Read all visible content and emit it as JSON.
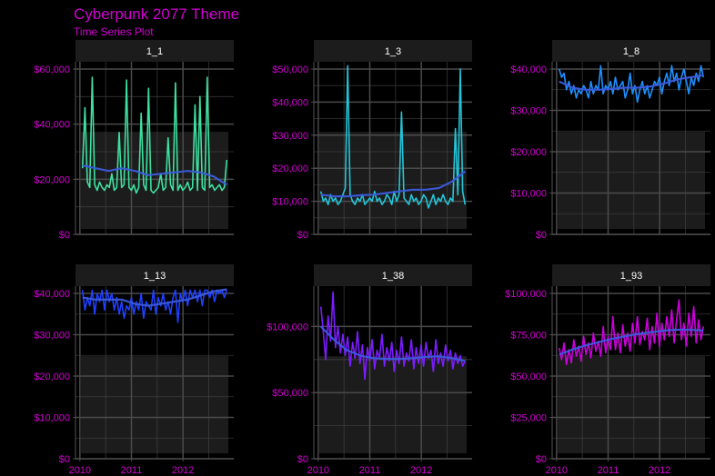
{
  "chart_data": {
    "type": "line",
    "title": "Cyberpunk 2077 Theme",
    "subtitle": "Time Series Plot",
    "x_tick_labels": [
      "2010",
      "2011",
      "2012"
    ],
    "colors": {
      "background": "#000000",
      "panel": "#1c1c1c",
      "strip": "#1c1c1c",
      "grid": "#4a4a4a",
      "axis_text": "#d100d1",
      "strip_text": "#ffffff",
      "title": "#d100d1",
      "smooth": "#3b5bdb"
    },
    "panels": [
      {
        "id": "1_1",
        "color": "#3ee0a0",
        "yticks": [
          0,
          20000,
          40000,
          60000
        ],
        "ytick_labels": [
          "$0",
          "$20,000",
          "$40,000",
          "$60,000"
        ],
        "ylim": [
          0,
          60000
        ],
        "values": [
          24000,
          46000,
          19000,
          17000,
          57000,
          18000,
          16000,
          19000,
          17000,
          16000,
          18000,
          17000,
          22000,
          16000,
          17000,
          37000,
          17000,
          18000,
          56000,
          17000,
          16000,
          18000,
          15000,
          17000,
          44000,
          18000,
          16000,
          53000,
          16000,
          15000,
          16000,
          17000,
          22000,
          16000,
          17000,
          35000,
          18000,
          16000,
          55000,
          16000,
          18000,
          16000,
          17000,
          19000,
          16000,
          17000,
          47000,
          16000,
          50000,
          17000,
          16000,
          57000,
          17000,
          18000,
          16000,
          17000,
          18000,
          16000,
          17000,
          27000
        ],
        "smooth": [
          25000,
          24000,
          23000,
          24000,
          23000,
          21500,
          22000,
          22500,
          23000,
          22500,
          21000,
          18000
        ]
      },
      {
        "id": "1_3",
        "color": "#22c5d8",
        "yticks": [
          0,
          10000,
          20000,
          30000,
          40000,
          50000
        ],
        "ytick_labels": [
          "$0",
          "$10,000",
          "$20,000",
          "$30,000",
          "$40,000",
          "$50,000"
        ],
        "ylim": [
          0,
          50000
        ],
        "values": [
          13000,
          10000,
          11000,
          9000,
          12000,
          10000,
          11000,
          9000,
          10000,
          12000,
          14000,
          51000,
          12000,
          10000,
          9000,
          11000,
          10000,
          12000,
          9000,
          10000,
          11000,
          10000,
          13000,
          10000,
          11000,
          9000,
          10000,
          12000,
          11000,
          9000,
          13000,
          10000,
          12000,
          37000,
          11000,
          10000,
          9000,
          12000,
          10000,
          11000,
          9000,
          10000,
          12000,
          11000,
          8000,
          10000,
          12000,
          9000,
          11000,
          10000,
          12000,
          10000,
          9000,
          11000,
          10000,
          32000,
          12000,
          50000,
          13000,
          9000
        ],
        "smooth": [
          12000,
          11500,
          11500,
          11800,
          12000,
          12500,
          13000,
          13500,
          13500,
          14000,
          16000,
          19000
        ]
      },
      {
        "id": "1_8",
        "color": "#1e90ff",
        "yticks": [
          0,
          10000,
          20000,
          30000,
          40000
        ],
        "ytick_labels": [
          "$0",
          "$10,000",
          "$20,000",
          "$30,000",
          "$40,000"
        ],
        "ylim": [
          0,
          40000
        ],
        "values": [
          40000,
          38000,
          39000,
          35000,
          37000,
          34000,
          36000,
          33000,
          35000,
          34000,
          36000,
          35000,
          33000,
          37000,
          34000,
          36000,
          35000,
          42000,
          34000,
          36000,
          35000,
          37000,
          34000,
          38000,
          35000,
          36000,
          37000,
          33000,
          35000,
          39000,
          34000,
          36000,
          32000,
          35000,
          37000,
          34000,
          36000,
          33000,
          35000,
          37000,
          36000,
          38000,
          34000,
          37000,
          39000,
          36000,
          41000,
          37000,
          39000,
          35000,
          38000,
          40000,
          37000,
          34000,
          38000,
          36000,
          39000,
          37000,
          42000,
          38000
        ],
        "smooth": [
          37000,
          35500,
          35000,
          35000,
          35200,
          35500,
          35500,
          35800,
          36500,
          37500,
          38000,
          38500
        ]
      },
      {
        "id": "1_13",
        "color": "#1f3fff",
        "yticks": [
          0,
          10000,
          20000,
          30000,
          40000
        ],
        "ytick_labels": [
          "$0",
          "$10,000",
          "$20,000",
          "$30,000",
          "$40,000"
        ],
        "ylim": [
          0,
          40000
        ],
        "values": [
          42000,
          36000,
          39000,
          37000,
          41000,
          35000,
          40000,
          38000,
          42000,
          36000,
          44000,
          38000,
          40000,
          36000,
          39000,
          35000,
          38000,
          34000,
          37000,
          36000,
          39000,
          35000,
          38000,
          36000,
          40000,
          34000,
          38000,
          37000,
          36000,
          41000,
          35000,
          39000,
          37000,
          40000,
          36000,
          38000,
          35000,
          39000,
          41000,
          33000,
          40000,
          38000,
          43000,
          37000,
          41000,
          39000,
          44000,
          38000,
          42000,
          37000,
          41000,
          43000,
          39000,
          42000,
          38000,
          44000,
          40000,
          43000,
          39000,
          42000
        ],
        "smooth": [
          39000,
          38500,
          38500,
          38500,
          37500,
          37000,
          37500,
          38000,
          38500,
          39500,
          40500,
          41000
        ]
      },
      {
        "id": "1_38",
        "color": "#7b1cff",
        "yticks": [
          0,
          50000,
          100000
        ],
        "ytick_labels": [
          "$0",
          "$50,000",
          "$100,000"
        ],
        "ylim": [
          0,
          125000
        ],
        "values": [
          115000,
          96000,
          75000,
          108000,
          89000,
          126000,
          84000,
          100000,
          80000,
          94000,
          78000,
          92000,
          70000,
          88000,
          76000,
          96000,
          72000,
          86000,
          60000,
          84000,
          74000,
          90000,
          68000,
          82000,
          76000,
          94000,
          70000,
          84000,
          74000,
          88000,
          66000,
          82000,
          72000,
          92000,
          70000,
          80000,
          74000,
          90000,
          68000,
          84000,
          72000,
          86000,
          70000,
          88000,
          76000,
          82000,
          66000,
          90000,
          72000,
          80000,
          70000,
          86000,
          74000,
          82000,
          68000,
          80000,
          72000,
          78000,
          70000,
          74000
        ],
        "smooth": [
          100000,
          90000,
          82000,
          78000,
          76000,
          75500,
          75500,
          76000,
          77000,
          77500,
          76000,
          74000
        ]
      },
      {
        "id": "1_93",
        "color": "#cc00dd",
        "yticks": [
          0,
          25000,
          50000,
          75000,
          100000
        ],
        "ytick_labels": [
          "$0",
          "$25,000",
          "$50,000",
          "$75,000",
          "$100,000"
        ],
        "ylim": [
          0,
          100000
        ],
        "values": [
          67000,
          60000,
          70000,
          57000,
          66000,
          58000,
          72000,
          62000,
          68000,
          59000,
          74000,
          63000,
          70000,
          61000,
          76000,
          65000,
          71000,
          62000,
          80000,
          64000,
          74000,
          66000,
          86000,
          66000,
          76000,
          64000,
          81000,
          68000,
          76000,
          65000,
          82000,
          70000,
          86000,
          69000,
          77000,
          72000,
          85000,
          66000,
          80000,
          70000,
          88000,
          68000,
          82000,
          72000,
          86000,
          74000,
          90000,
          70000,
          84000,
          96000,
          72000,
          82000,
          68000,
          88000,
          74000,
          92000,
          70000,
          84000,
          72000,
          80000
        ],
        "smooth": [
          63000,
          66000,
          68500,
          70500,
          72500,
          74000,
          75500,
          76500,
          77500,
          78000,
          78000,
          77500
        ]
      }
    ]
  }
}
